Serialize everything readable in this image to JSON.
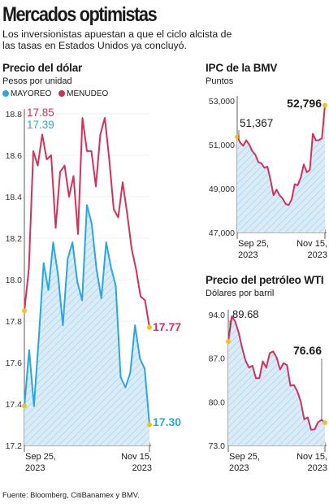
{
  "header": {
    "title": "Mercados optimistas",
    "subtitle": "Los inversionistas apuestan a que el ciclo alcista de las tasas en Estados Unidos ya concluyó."
  },
  "source": "Fuente: Bloomberg, CitiBanamex y BMV.",
  "colors": {
    "mayoreo": "#2aa7df",
    "menudeo": "#d0325a",
    "hatch": "#d7ebf7",
    "hatch_line": "#9fc7e2",
    "end_dot": "#f3c21b"
  },
  "chart_data": [
    {
      "id": "dolar",
      "type": "line",
      "title": "Precio del dólar",
      "ylabel": "Pesos por unidad",
      "ylim": [
        17.2,
        18.8
      ],
      "yticks": [
        "18.8",
        "18.6",
        "18.4",
        "18.2",
        "18.0",
        "17.8",
        "17.6",
        "17.4",
        "17.2"
      ],
      "x_labels": [
        "Sep 25,\n2023",
        "Nov 15,\n2023"
      ],
      "series": [
        {
          "name": "MENUDEO",
          "color": "#d0325a",
          "values": [
            17.85,
            18.05,
            18.62,
            18.55,
            18.7,
            18.58,
            18.6,
            18.25,
            18.52,
            18.55,
            18.4,
            18.5,
            18.22,
            18.78,
            18.62,
            18.62,
            18.45,
            18.7,
            18.78,
            18.58,
            18.34,
            18.3,
            18.47,
            18.32,
            18.15,
            18.05,
            17.92,
            17.9,
            17.77
          ],
          "start_label": "17.85",
          "end_label": "17.77"
        },
        {
          "name": "MAYOREO",
          "color": "#2aa7df",
          "values": [
            17.39,
            17.66,
            17.39,
            17.72,
            18.08,
            17.95,
            18.18,
            18.02,
            17.78,
            18.1,
            18.18,
            17.99,
            17.9,
            18.36,
            18.27,
            18.05,
            17.91,
            18.18,
            18.06,
            17.97,
            17.53,
            17.48,
            17.55,
            17.78,
            17.62,
            17.57,
            17.3
          ],
          "start_label": "17.39",
          "end_label": "17.30"
        }
      ]
    },
    {
      "id": "ipc",
      "type": "area",
      "title": "IPC de la BMV",
      "ylabel": "Puntos",
      "ylim": [
        47000,
        53000
      ],
      "yticks": [
        "53,000",
        "51,000",
        "49,000",
        "47,000"
      ],
      "x_labels": [
        "Sep 25,\n2023",
        "Nov 15,\n2023"
      ],
      "series": [
        {
          "name": "IPC",
          "color": "#d0325a",
          "values": [
            51367,
            51100,
            50950,
            51200,
            51000,
            50700,
            50550,
            50200,
            50150,
            49950,
            50000,
            49400,
            48700,
            48950,
            48700,
            48550,
            48300,
            48250,
            48500,
            49200,
            49150,
            49500,
            50100,
            49750,
            49850,
            51500,
            51200,
            51200,
            51300,
            52796
          ],
          "start_label": "51,367",
          "end_label": "52,796"
        }
      ]
    },
    {
      "id": "wti",
      "type": "area",
      "title": "Precio del petróleo WTI",
      "ylabel": "Dólares por barril",
      "ylim": [
        73.0,
        94.0
      ],
      "yticks": [
        "94.0",
        "87.0",
        "80.0",
        "73.0"
      ],
      "x_labels": [
        "Sep 25,\n2023",
        "Nov 15,\n2023"
      ],
      "series": [
        {
          "name": "WTI",
          "color": "#d0325a",
          "values": [
            89.68,
            93.7,
            92.9,
            91.1,
            88.7,
            86.6,
            85.5,
            85.8,
            83.8,
            83.8,
            86.5,
            85.5,
            87.8,
            88.1,
            87.1,
            85.2,
            86.2,
            85.9,
            82.6,
            82.7,
            81.7,
            80.0,
            77.2,
            77.5,
            75.5,
            75.6,
            76.7,
            77.1,
            76.66
          ],
          "start_label": "89.68",
          "end_label": "76.66"
        }
      ]
    }
  ]
}
